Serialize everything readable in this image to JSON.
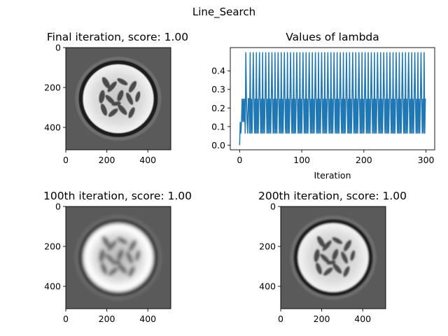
{
  "suptitle": "Line_Search",
  "chart_data": [
    {
      "type": "image",
      "panel": "final",
      "title": "Final iteration, score: 1.00",
      "xticks": [
        0,
        200,
        400
      ],
      "yticks": [
        0,
        200,
        400
      ],
      "xlim": [
        0,
        512
      ],
      "ylim": [
        512,
        0
      ],
      "colormap": "gray",
      "phantom_sharpness": 1.0
    },
    {
      "type": "line",
      "panel": "lambda",
      "title": "Values of lambda",
      "xlabel": "Iteration",
      "ylabel": "",
      "xlim": [
        -15,
        314
      ],
      "ylim": [
        -0.025,
        0.525
      ],
      "xticks": [
        0,
        100,
        200,
        300
      ],
      "yticks": [
        "0.0",
        "0.1",
        "0.2",
        "0.3",
        "0.4"
      ],
      "color": "#1f77b4",
      "pattern": {
        "x_start": 0,
        "x_end": 299,
        "warmup": [
          {
            "x": 0,
            "y": 0.0
          },
          {
            "x": 1,
            "y": 0.125
          },
          {
            "x": 2,
            "y": 0.0625
          },
          {
            "x": 3,
            "y": 0.125
          },
          {
            "x": 4,
            "y": 0.25
          },
          {
            "x": 5,
            "y": 0.125
          },
          {
            "x": 6,
            "y": 0.25
          },
          {
            "x": 7,
            "y": 0.125
          },
          {
            "x": 8,
            "y": 0.25
          },
          {
            "x": 9,
            "y": 0.0625
          },
          {
            "x": 10,
            "y": 0.5
          },
          {
            "x": 11,
            "y": 0.25
          },
          {
            "x": 12,
            "y": 0.125
          },
          {
            "x": 13,
            "y": 0.0625
          },
          {
            "x": 14,
            "y": 0.25
          }
        ],
        "low": 0.0625,
        "mid": 0.25,
        "high": 0.5,
        "high_every": 5
      }
    },
    {
      "type": "image",
      "panel": "iter100",
      "title": "100th iteration, score: 1.00",
      "xticks": [
        0,
        200,
        400
      ],
      "yticks": [
        0,
        200,
        400
      ],
      "xlim": [
        0,
        512
      ],
      "ylim": [
        512,
        0
      ],
      "colormap": "gray",
      "phantom_sharpness": 0.35
    },
    {
      "type": "image",
      "panel": "iter200",
      "title": "200th iteration, score: 1.00",
      "xticks": [
        0,
        200,
        400
      ],
      "yticks": [
        0,
        200,
        400
      ],
      "xlim": [
        0,
        512
      ],
      "ylim": [
        512,
        0
      ],
      "colormap": "gray",
      "phantom_sharpness": 0.8
    }
  ]
}
